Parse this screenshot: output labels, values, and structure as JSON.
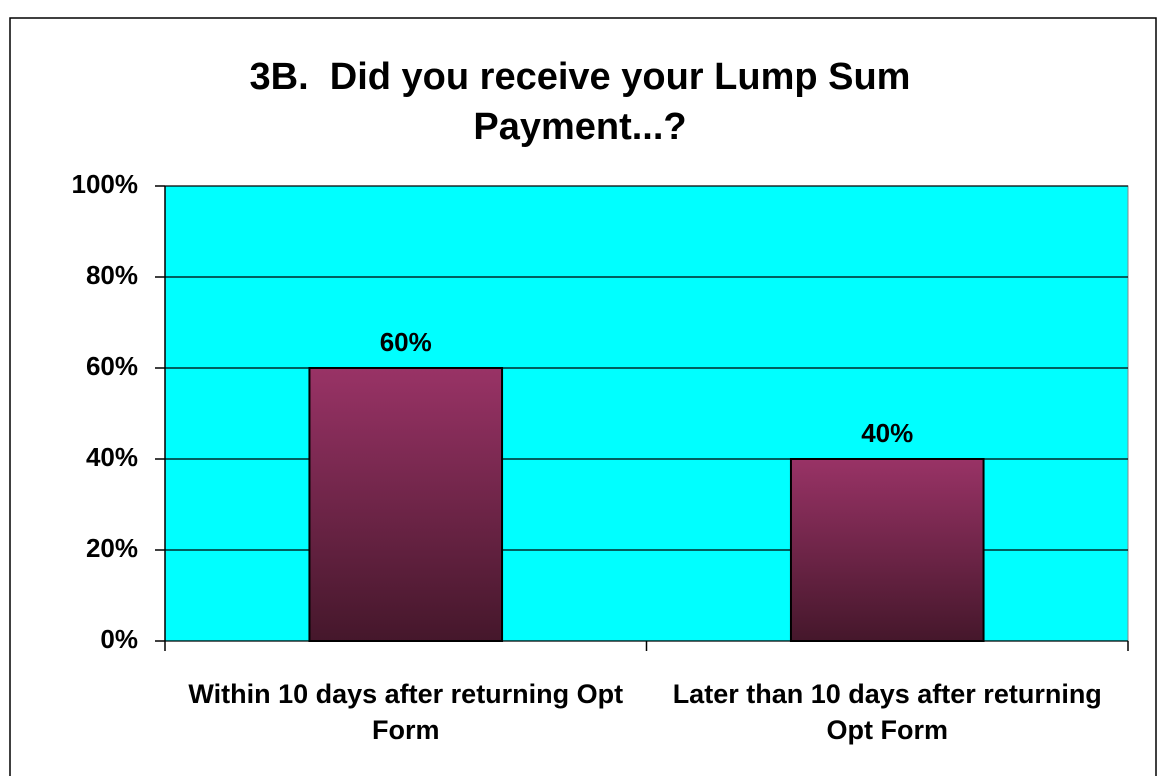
{
  "chart_data": {
    "type": "bar",
    "title": "3B.  Did you receive your Lump Sum Payment...?",
    "categories": [
      "Within 10 days after returning Opt Form",
      "Later than 10 days after returning Opt Form"
    ],
    "values": [
      60,
      40
    ],
    "value_labels": [
      "60%",
      "40%"
    ],
    "color": "#993366",
    "plot_background": "#00ffff",
    "ylim": [
      0,
      100
    ],
    "yticks": [
      {
        "value": 0,
        "label": "0%"
      },
      {
        "value": 20,
        "label": "20%"
      },
      {
        "value": 40,
        "label": "40%"
      },
      {
        "value": 60,
        "label": "60%"
      },
      {
        "value": 80,
        "label": "80%"
      },
      {
        "value": 100,
        "label": "100%"
      }
    ],
    "grid": true
  }
}
